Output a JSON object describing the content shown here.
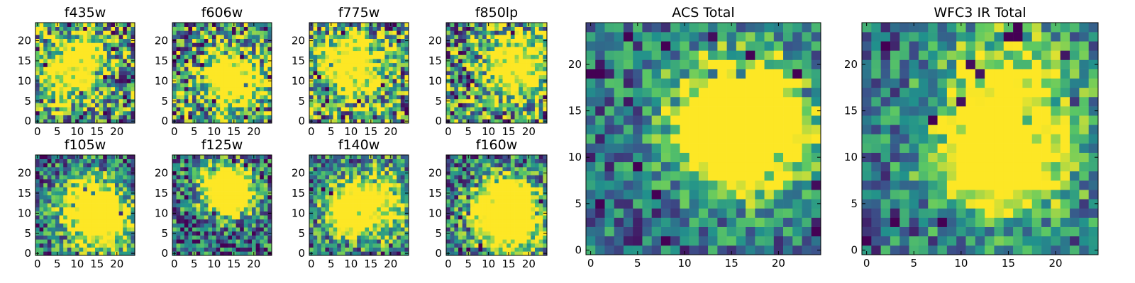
{
  "figure": {
    "colormap": "viridis",
    "colormap_stops": [
      "#440154",
      "#3b528b",
      "#21918c",
      "#5ec962",
      "#fde725"
    ]
  },
  "chart_data": [
    {
      "type": "heatmap",
      "title": "f435w",
      "grid_size": 25,
      "xticks": [
        0,
        5,
        10,
        15,
        20
      ],
      "yticks": [
        0,
        5,
        10,
        15,
        20
      ],
      "xlim": [
        -0.5,
        24.5
      ],
      "ylim": [
        -0.5,
        24.5
      ],
      "grid": false,
      "pattern_seed": 11,
      "texture": "noisy"
    },
    {
      "type": "heatmap",
      "title": "f606w",
      "grid_size": 25,
      "xticks": [
        0,
        5,
        10,
        15,
        20
      ],
      "yticks": [
        0,
        5,
        10,
        15,
        20
      ],
      "xlim": [
        -0.5,
        24.5
      ],
      "ylim": [
        -0.5,
        24.5
      ],
      "grid": false,
      "pattern_seed": 23,
      "texture": "noisy"
    },
    {
      "type": "heatmap",
      "title": "f775w",
      "grid_size": 25,
      "xticks": [
        0,
        5,
        10,
        15,
        20
      ],
      "yticks": [
        0,
        5,
        10,
        15,
        20
      ],
      "xlim": [
        -0.5,
        24.5
      ],
      "ylim": [
        -0.5,
        24.5
      ],
      "grid": false,
      "pattern_seed": 37,
      "texture": "noisy"
    },
    {
      "type": "heatmap",
      "title": "f850lp",
      "grid_size": 25,
      "xticks": [
        0,
        5,
        10,
        15,
        20
      ],
      "yticks": [
        0,
        5,
        10,
        15,
        20
      ],
      "xlim": [
        -0.5,
        24.5
      ],
      "ylim": [
        -0.5,
        24.5
      ],
      "grid": false,
      "pattern_seed": 41,
      "texture": "noisy"
    },
    {
      "type": "heatmap",
      "title": "ACS Total",
      "grid_size": 25,
      "xticks": [
        0,
        5,
        10,
        15,
        20
      ],
      "yticks": [
        0,
        5,
        10,
        15,
        20
      ],
      "xlim": [
        -0.5,
        24.5
      ],
      "ylim": [
        -0.5,
        24.5
      ],
      "grid": false,
      "pattern_seed": 53,
      "texture": "smooth"
    },
    {
      "type": "heatmap",
      "title": "WFC3 IR Total",
      "grid_size": 25,
      "xticks": [
        0,
        5,
        10,
        15,
        20
      ],
      "yticks": [
        0,
        5,
        10,
        15,
        20
      ],
      "xlim": [
        -0.5,
        24.5
      ],
      "ylim": [
        -0.5,
        24.5
      ],
      "grid": false,
      "pattern_seed": 67,
      "texture": "smooth"
    },
    {
      "type": "heatmap",
      "title": "f105w",
      "grid_size": 25,
      "xticks": [
        0,
        5,
        10,
        15,
        20
      ],
      "yticks": [
        0,
        5,
        10,
        15,
        20
      ],
      "xlim": [
        -0.5,
        24.5
      ],
      "ylim": [
        -0.5,
        24.5
      ],
      "grid": false,
      "pattern_seed": 71,
      "texture": "medium"
    },
    {
      "type": "heatmap",
      "title": "f125w",
      "grid_size": 25,
      "xticks": [
        0,
        5,
        10,
        15,
        20
      ],
      "yticks": [
        0,
        5,
        10,
        15,
        20
      ],
      "xlim": [
        -0.5,
        24.5
      ],
      "ylim": [
        -0.5,
        24.5
      ],
      "grid": false,
      "pattern_seed": 83,
      "texture": "medium"
    },
    {
      "type": "heatmap",
      "title": "f140w",
      "grid_size": 25,
      "xticks": [
        0,
        5,
        10,
        15,
        20
      ],
      "yticks": [
        0,
        5,
        10,
        15,
        20
      ],
      "xlim": [
        -0.5,
        24.5
      ],
      "ylim": [
        -0.5,
        24.5
      ],
      "grid": false,
      "pattern_seed": 97,
      "texture": "medium"
    },
    {
      "type": "heatmap",
      "title": "f160w",
      "grid_size": 25,
      "xticks": [
        0,
        5,
        10,
        15,
        20
      ],
      "yticks": [
        0,
        5,
        10,
        15,
        20
      ],
      "xlim": [
        -0.5,
        24.5
      ],
      "ylim": [
        -0.5,
        24.5
      ],
      "grid": false,
      "pattern_seed": 101,
      "texture": "medium"
    }
  ]
}
